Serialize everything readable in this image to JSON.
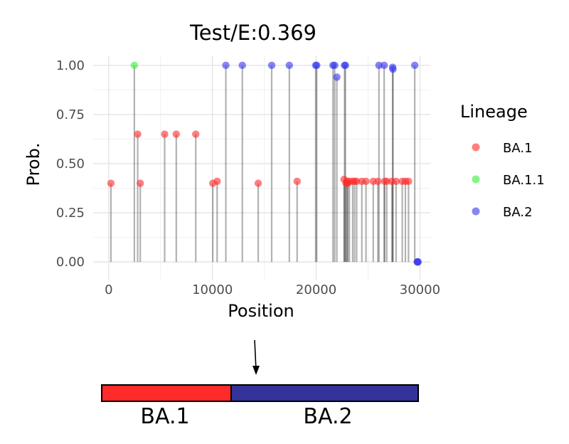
{
  "chart_data": {
    "type": "scatter",
    "title": "Test/E:0.369",
    "xlabel": "Position",
    "ylabel": "Prob.",
    "xlim": [
      -1500,
      31000
    ],
    "ylim": [
      -0.09,
      1.05
    ],
    "x_ticks": [
      0,
      10000,
      20000,
      30000
    ],
    "x_tick_labels": [
      "0",
      "10000",
      "20000",
      "30000"
    ],
    "y_ticks": [
      0,
      0.25,
      0.5,
      0.75,
      1.0
    ],
    "y_tick_labels": [
      "0.00",
      "0.25",
      "0.50",
      "0.75",
      "1.00"
    ],
    "grid": true,
    "legend": {
      "title": "Lineage",
      "placement": "right",
      "entries": [
        {
          "label": "BA.1",
          "color": "#FF2A2A"
        },
        {
          "label": "BA.1.1",
          "color": "#33EE33"
        },
        {
          "label": "BA.2",
          "color": "#3333EE"
        }
      ]
    },
    "series": [
      {
        "name": "BA.1",
        "color": "#FF2A2A",
        "x": [
          210,
          2790,
          3040,
          5390,
          6510,
          8390,
          10030,
          10450,
          14410,
          18160,
          22680,
          22880,
          22990,
          23050,
          23200,
          23520,
          23700,
          23900,
          24400,
          24800,
          25500,
          25950,
          26600,
          26800,
          27300,
          27700,
          28300,
          28600,
          28900
        ],
        "y": [
          0.4,
          0.65,
          0.4,
          0.65,
          0.65,
          0.65,
          0.4,
          0.41,
          0.4,
          0.41,
          0.42,
          0.4,
          0.41,
          0.4,
          0.41,
          0.41,
          0.41,
          0.41,
          0.41,
          0.41,
          0.41,
          0.41,
          0.41,
          0.41,
          0.41,
          0.41,
          0.41,
          0.41,
          0.41
        ]
      },
      {
        "name": "BA.1.1",
        "color": "#33EE33",
        "x": [
          2470
        ],
        "y": [
          1.0
        ]
      },
      {
        "name": "BA.2",
        "color": "#3333EE",
        "x": [
          11290,
          12880,
          15710,
          17410,
          19950,
          20050,
          21620,
          21780,
          21990,
          22740,
          22810,
          26050,
          26550,
          27370,
          27400,
          29500,
          29730,
          29780,
          29820
        ],
        "y": [
          1.0,
          1.0,
          1.0,
          1.0,
          1.0,
          1.0,
          1.0,
          1.0,
          0.94,
          1.0,
          1.0,
          1.0,
          1.0,
          0.99,
          0.98,
          1.0,
          0.0,
          0.0,
          0.0
        ]
      }
    ]
  },
  "segments": [
    {
      "label": "BA.1",
      "color": "#FF2A2A"
    },
    {
      "label": "BA.2",
      "color": "#333399"
    }
  ]
}
